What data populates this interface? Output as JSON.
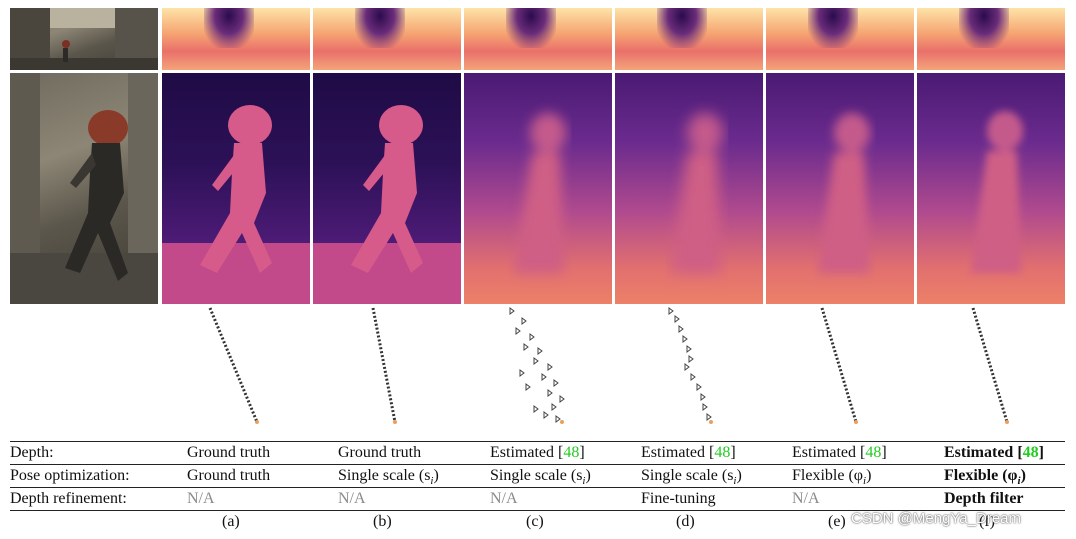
{
  "table": {
    "rows": [
      {
        "label": "Depth:",
        "cells": [
          {
            "text": "Ground truth",
            "ref": "",
            "close": ""
          },
          {
            "text": "Ground truth",
            "ref": "",
            "close": ""
          },
          {
            "text": "Estimated [",
            "ref": "48",
            "close": "]"
          },
          {
            "text": "Estimated [",
            "ref": "48",
            "close": "]"
          },
          {
            "text": "Estimated [",
            "ref": "48",
            "close": "]"
          },
          {
            "text": "Estimated [",
            "ref": "48",
            "close": "]"
          }
        ]
      },
      {
        "label": "Pose optimization:",
        "cells": [
          {
            "text": "Ground truth",
            "ref": "",
            "close": ""
          },
          {
            "text": "Single scale (s",
            "ref": "i",
            "close": ")"
          },
          {
            "text": "Single scale (s",
            "ref": "i",
            "close": ")"
          },
          {
            "text": "Single scale (s",
            "ref": "i",
            "close": ")"
          },
          {
            "text": "Flexible (φ",
            "ref": "i",
            "close": ")"
          },
          {
            "text": "Flexible (φ",
            "ref": "i",
            "close": ")"
          }
        ]
      },
      {
        "label": "Depth refinement:",
        "cells": [
          {
            "text": "N/A",
            "ref": "",
            "close": ""
          },
          {
            "text": "N/A",
            "ref": "",
            "close": ""
          },
          {
            "text": "N/A",
            "ref": "",
            "close": ""
          },
          {
            "text": "Fine-tuning",
            "ref": "",
            "close": ""
          },
          {
            "text": "N/A",
            "ref": "",
            "close": ""
          },
          {
            "text": "Depth filter",
            "ref": "",
            "close": ""
          }
        ]
      }
    ]
  },
  "captions": [
    "(a)",
    "(b)",
    "(c)",
    "(d)",
    "(e)",
    "(f)"
  ],
  "watermark": "CSDN @MengYa_Dream",
  "colors": {
    "citation": "#22cc22",
    "na_text": "#8a8a8a"
  }
}
